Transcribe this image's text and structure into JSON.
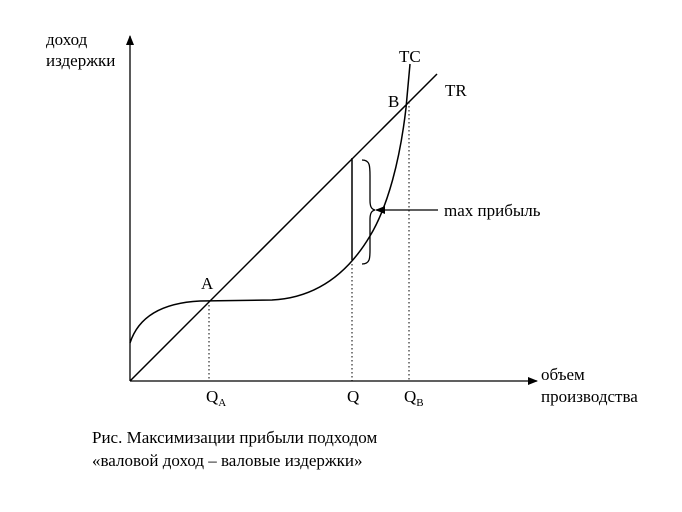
{
  "axes": {
    "y_label_line1": "доход",
    "y_label_line2": "издержки",
    "x_label_line1": "объем",
    "x_label_line2": "производства"
  },
  "curves": {
    "tc_label": "TC",
    "tr_label": "TR"
  },
  "points": {
    "a_label": "A",
    "b_label": "B"
  },
  "quantities": {
    "qa_base": "Q",
    "qa_sub": "A",
    "q_label": "Q",
    "qb_base": "Q",
    "qb_sub": "B"
  },
  "annotation": {
    "max_profit_label": "max прибыль"
  },
  "caption": {
    "line1": "Рис. Максимизации прибыли подходом",
    "line2": "«валовой доход – валовые издержки»"
  }
}
